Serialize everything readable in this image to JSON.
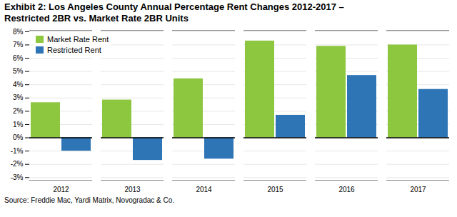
{
  "chart_data": {
    "type": "bar",
    "title": "Exhibit 2: Los Angeles County Annual Percentage Rent Changes 2012-2017 –",
    "subtitle": "Restricted 2BR vs. Market Rate 2BR Units",
    "caption": "Source: Freddie Mac, Yardi Matrix, Novogradac & Co.",
    "categories": [
      "2012",
      "2013",
      "2014",
      "2015",
      "2016",
      "2017"
    ],
    "series": [
      {
        "name": "Market Rate Rent",
        "color": "#8DC63F",
        "values": [
          2.65,
          2.85,
          4.45,
          7.3,
          6.9,
          7.0
        ]
      },
      {
        "name": "Restricted Rent",
        "color": "#2E75B6",
        "values": [
          -1.0,
          -1.7,
          -1.6,
          1.7,
          4.7,
          3.65
        ]
      }
    ],
    "ylim": [
      -3.2,
      8.1
    ],
    "yticks": [
      {
        "value": -3,
        "label": "-3%"
      },
      {
        "value": -2,
        "label": "-2%"
      },
      {
        "value": -1,
        "label": "-1%"
      },
      {
        "value": 0,
        "label": "0%"
      },
      {
        "value": 1,
        "label": "1%"
      },
      {
        "value": 2,
        "label": "2%"
      },
      {
        "value": 3,
        "label": "3%"
      },
      {
        "value": 4,
        "label": "4%"
      },
      {
        "value": 5,
        "label": "5%"
      },
      {
        "value": 6,
        "label": "6%"
      },
      {
        "value": 7,
        "label": "7%"
      },
      {
        "value": 8,
        "label": "8%"
      }
    ],
    "grid": true,
    "legend": "upper left"
  }
}
